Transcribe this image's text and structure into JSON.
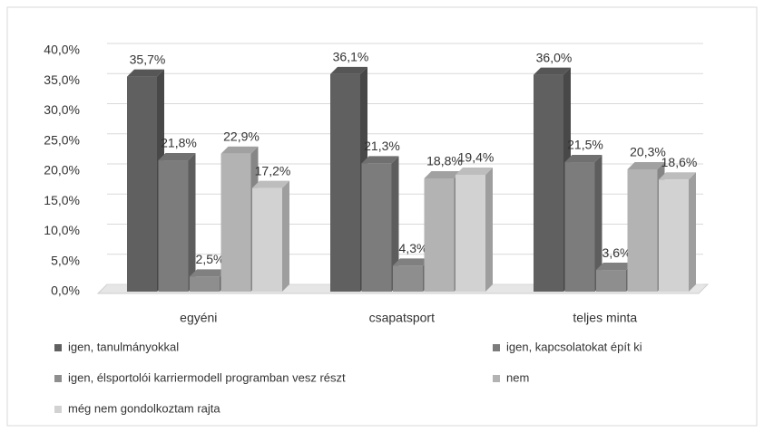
{
  "chart_data": {
    "type": "bar",
    "categories": [
      "egyéni",
      "csapatsport",
      "teljes minta"
    ],
    "series": [
      {
        "name": "igen, tanulmányokkal",
        "color": "#606060",
        "values": [
          35.7,
          36.1,
          36.0
        ],
        "value_labels": [
          "35,7%",
          "36,1%",
          "36,0%"
        ]
      },
      {
        "name": "igen, kapcsolatokat épít ki",
        "color": "#7c7c7c",
        "values": [
          21.8,
          21.3,
          21.5
        ],
        "value_labels": [
          "21,8%",
          "21,3%",
          "21,5%"
        ]
      },
      {
        "name": "igen, élsportolói karriermodell programban vesz részt",
        "color": "#8e8e8e",
        "values": [
          2.5,
          4.3,
          3.6
        ],
        "value_labels": [
          "2,5%",
          "4,3%",
          "3,6%"
        ]
      },
      {
        "name": "nem",
        "color": "#b3b3b3",
        "values": [
          22.9,
          18.8,
          20.3
        ],
        "value_labels": [
          "22,9%",
          "18,8%",
          "20,3%"
        ]
      },
      {
        "name": "még nem gondolkoztam rajta",
        "color": "#d2d2d2",
        "values": [
          17.2,
          19.4,
          18.6
        ],
        "value_labels": [
          "17,2%",
          "19,4%",
          "18,6%"
        ]
      }
    ],
    "ylim": [
      0,
      40
    ],
    "yticks": [
      {
        "value": 0,
        "label": "0,0%"
      },
      {
        "value": 5,
        "label": "5,0%"
      },
      {
        "value": 10,
        "label": "10,0%"
      },
      {
        "value": 15,
        "label": "15,0%"
      },
      {
        "value": 20,
        "label": "20,0%"
      },
      {
        "value": 25,
        "label": "25,0%"
      },
      {
        "value": 30,
        "label": "30,0%"
      },
      {
        "value": 35,
        "label": "35,0%"
      },
      {
        "value": 40,
        "label": "40,0%"
      }
    ],
    "grid": true,
    "legend": "bottom"
  }
}
